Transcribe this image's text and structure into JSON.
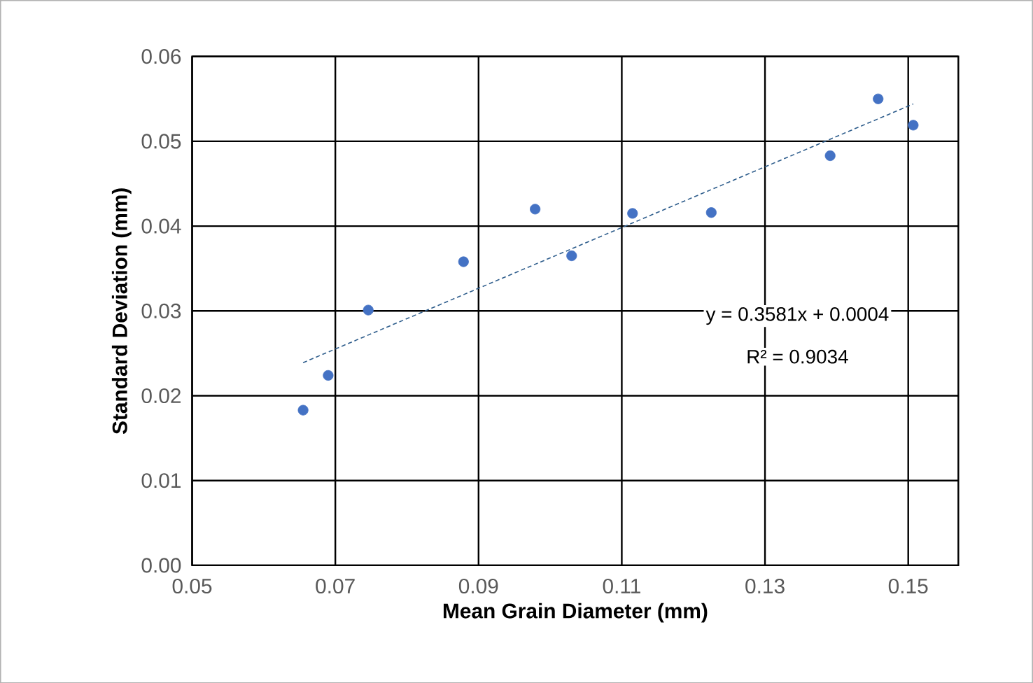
{
  "chart_data": {
    "type": "scatter",
    "xlabel": "Mean Grain Diameter (mm)",
    "ylabel": "Standard Deviation (mm)",
    "x": [
      0.0655,
      0.069,
      0.0746,
      0.0879,
      0.0979,
      0.103,
      0.1115,
      0.1225,
      0.1391,
      0.1458,
      0.1507
    ],
    "series": [
      {
        "color": "#4472c4",
        "marker": "circle",
        "values": [
          0.0183,
          0.0224,
          0.0301,
          0.0358,
          0.042,
          0.0365,
          0.0415,
          0.0416,
          0.0483,
          0.055,
          0.0519
        ]
      },
      {
        "type": "line",
        "color": "#2e5d8c",
        "line_style": "dashed",
        "marker": "none",
        "x": [
          0.0655,
          0.1507
        ],
        "values": [
          0.0239,
          0.0544
        ]
      }
    ],
    "xlim": [
      0.05,
      0.157
    ],
    "ylim": [
      0,
      0.06
    ],
    "xticks": [
      0.05,
      0.07,
      0.09,
      0.11,
      0.13,
      0.15
    ],
    "yticks": [
      {
        "value": 0,
        "label": "0.00"
      },
      0.01,
      0.02,
      0.03,
      0.04,
      0.05,
      0.06
    ],
    "grid": true,
    "annotations": [
      "y = 0.3581x + 0.0004",
      "R² = 0.9034"
    ]
  }
}
